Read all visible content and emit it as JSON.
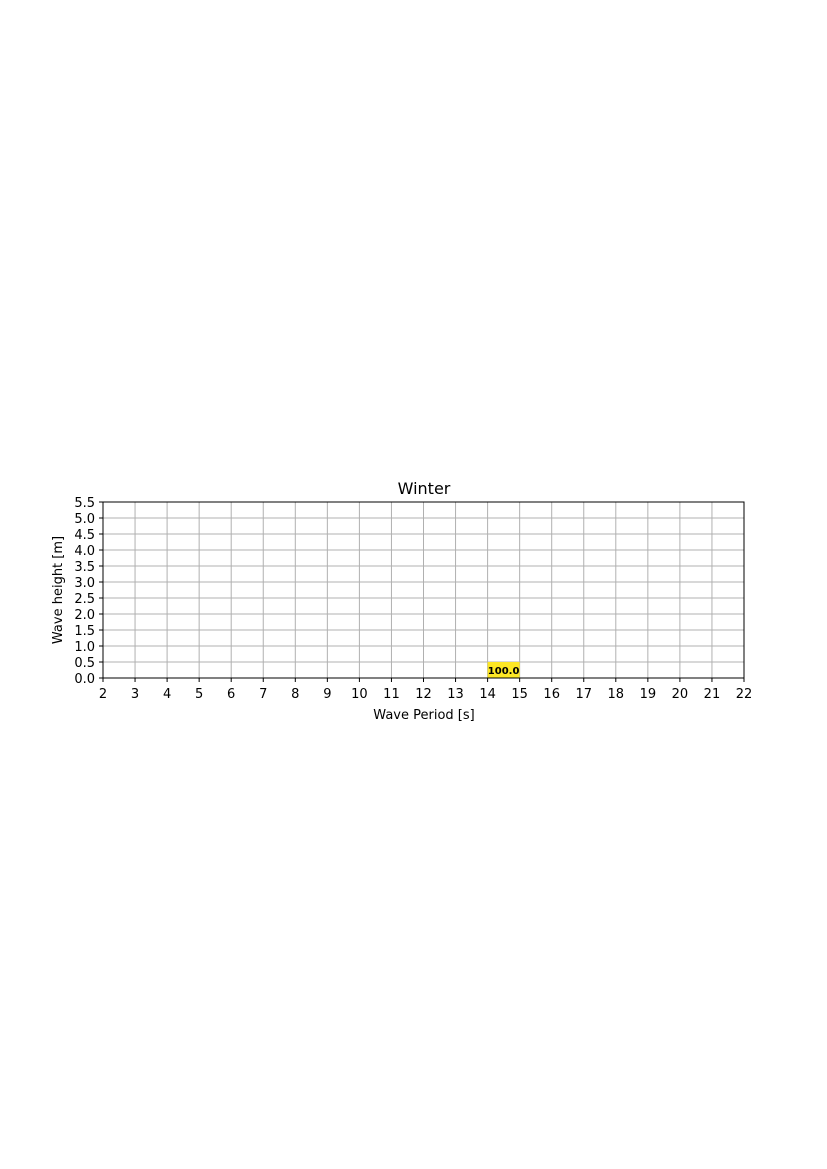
{
  "chart_data": {
    "type": "heatmap",
    "title": "Winter",
    "xlabel": "Wave Period [s]",
    "ylabel": "Wave height [m]",
    "xlim": [
      2,
      22
    ],
    "ylim": [
      0,
      5.5
    ],
    "x_ticks": [
      "2",
      "3",
      "4",
      "5",
      "6",
      "7",
      "8",
      "9",
      "10",
      "11",
      "12",
      "13",
      "14",
      "15",
      "16",
      "17",
      "18",
      "19",
      "20",
      "21",
      "22"
    ],
    "y_ticks": [
      "0.0",
      "0.5",
      "1.0",
      "1.5",
      "2.0",
      "2.5",
      "3.0",
      "3.5",
      "4.0",
      "4.5",
      "5.0",
      "5.5"
    ],
    "grid": true,
    "cells": [
      {
        "x": [
          14,
          15
        ],
        "y": [
          0,
          0.5
        ],
        "value": 100.0,
        "label": "100.0",
        "color": "#fde725"
      }
    ]
  }
}
